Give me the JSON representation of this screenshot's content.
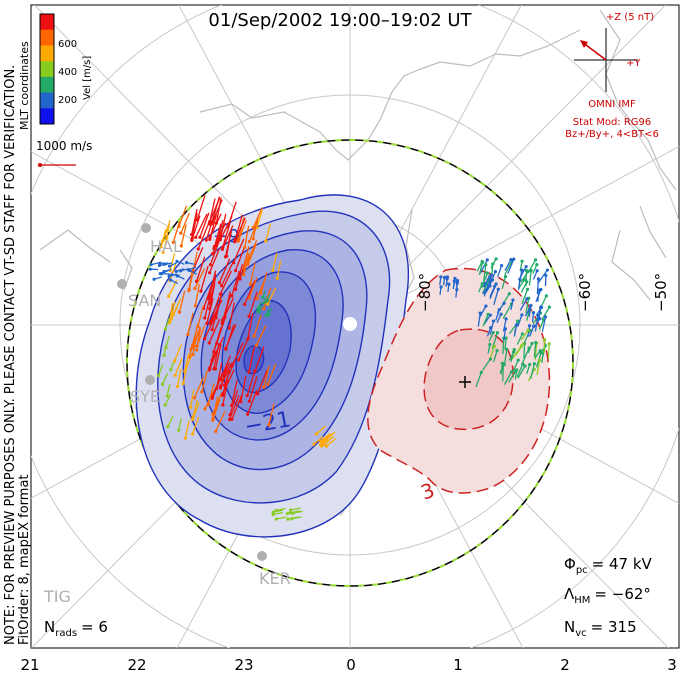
{
  "title": "01/Sep/2002 19:00–19:02 UT",
  "left_note_line1": "NOTE: FOR PREVIEW PURPOSES ONLY. PLEASE CONTACT VT-SD STAFF FOR VERIFICATION.",
  "left_note_line2": "FitOrder: 8, mapEX format",
  "mlt_label": "MLT coordinates",
  "colorbar": {
    "label": "Vel [m/s]",
    "ticks": [
      "600",
      "400",
      "200"
    ],
    "colors": [
      "#ee1111",
      "#ff6600",
      "#ffaa00",
      "#88cc22",
      "#22aa66",
      "#2266cc",
      "#1111ee"
    ]
  },
  "vector_scale_label": "1000 m/s",
  "imf": {
    "z_label": "+Z (5 nT)",
    "y_label": "+Y",
    "source": "OMNI IMF",
    "model_line1": "Stat Mod: RG96",
    "model_line2": "Bz+/By+, 4<BT<6",
    "color": "#cc0000"
  },
  "stats": {
    "phi_pc_symbol": "Φ",
    "phi_pc_sub": "pc",
    "phi_pc_value": "= 47 kV",
    "lambda_hm_symbol": "Λ",
    "lambda_hm_sub": "HM",
    "lambda_hm_value": "= −62°",
    "n_vc_symbol": "N",
    "n_vc_sub": "vc",
    "n_vc_value": "= 315",
    "n_rads_symbol": "N",
    "n_rads_sub": "rads",
    "n_rads_value": "= 6"
  },
  "stations": [
    "HAL",
    "SAN",
    "SYE",
    "KER",
    "TIG"
  ],
  "chart_data": {
    "type": "contour",
    "x_axis": {
      "label": "",
      "ticks": [
        "21",
        "22",
        "23",
        "0",
        "1",
        "2",
        "3"
      ],
      "values": [
        21,
        22,
        23,
        0,
        1,
        2,
        3
      ]
    },
    "longitude_labels": [
      "−80°",
      "−60°",
      "−50°"
    ],
    "negative_cell": {
      "color": "#3344cc",
      "contour_labels": [
        "−9",
        "−21"
      ]
    },
    "positive_cell": {
      "color": "#cc2222",
      "contour_labels": [
        "3"
      ]
    },
    "heppner_maynard_latitude": -62
  }
}
